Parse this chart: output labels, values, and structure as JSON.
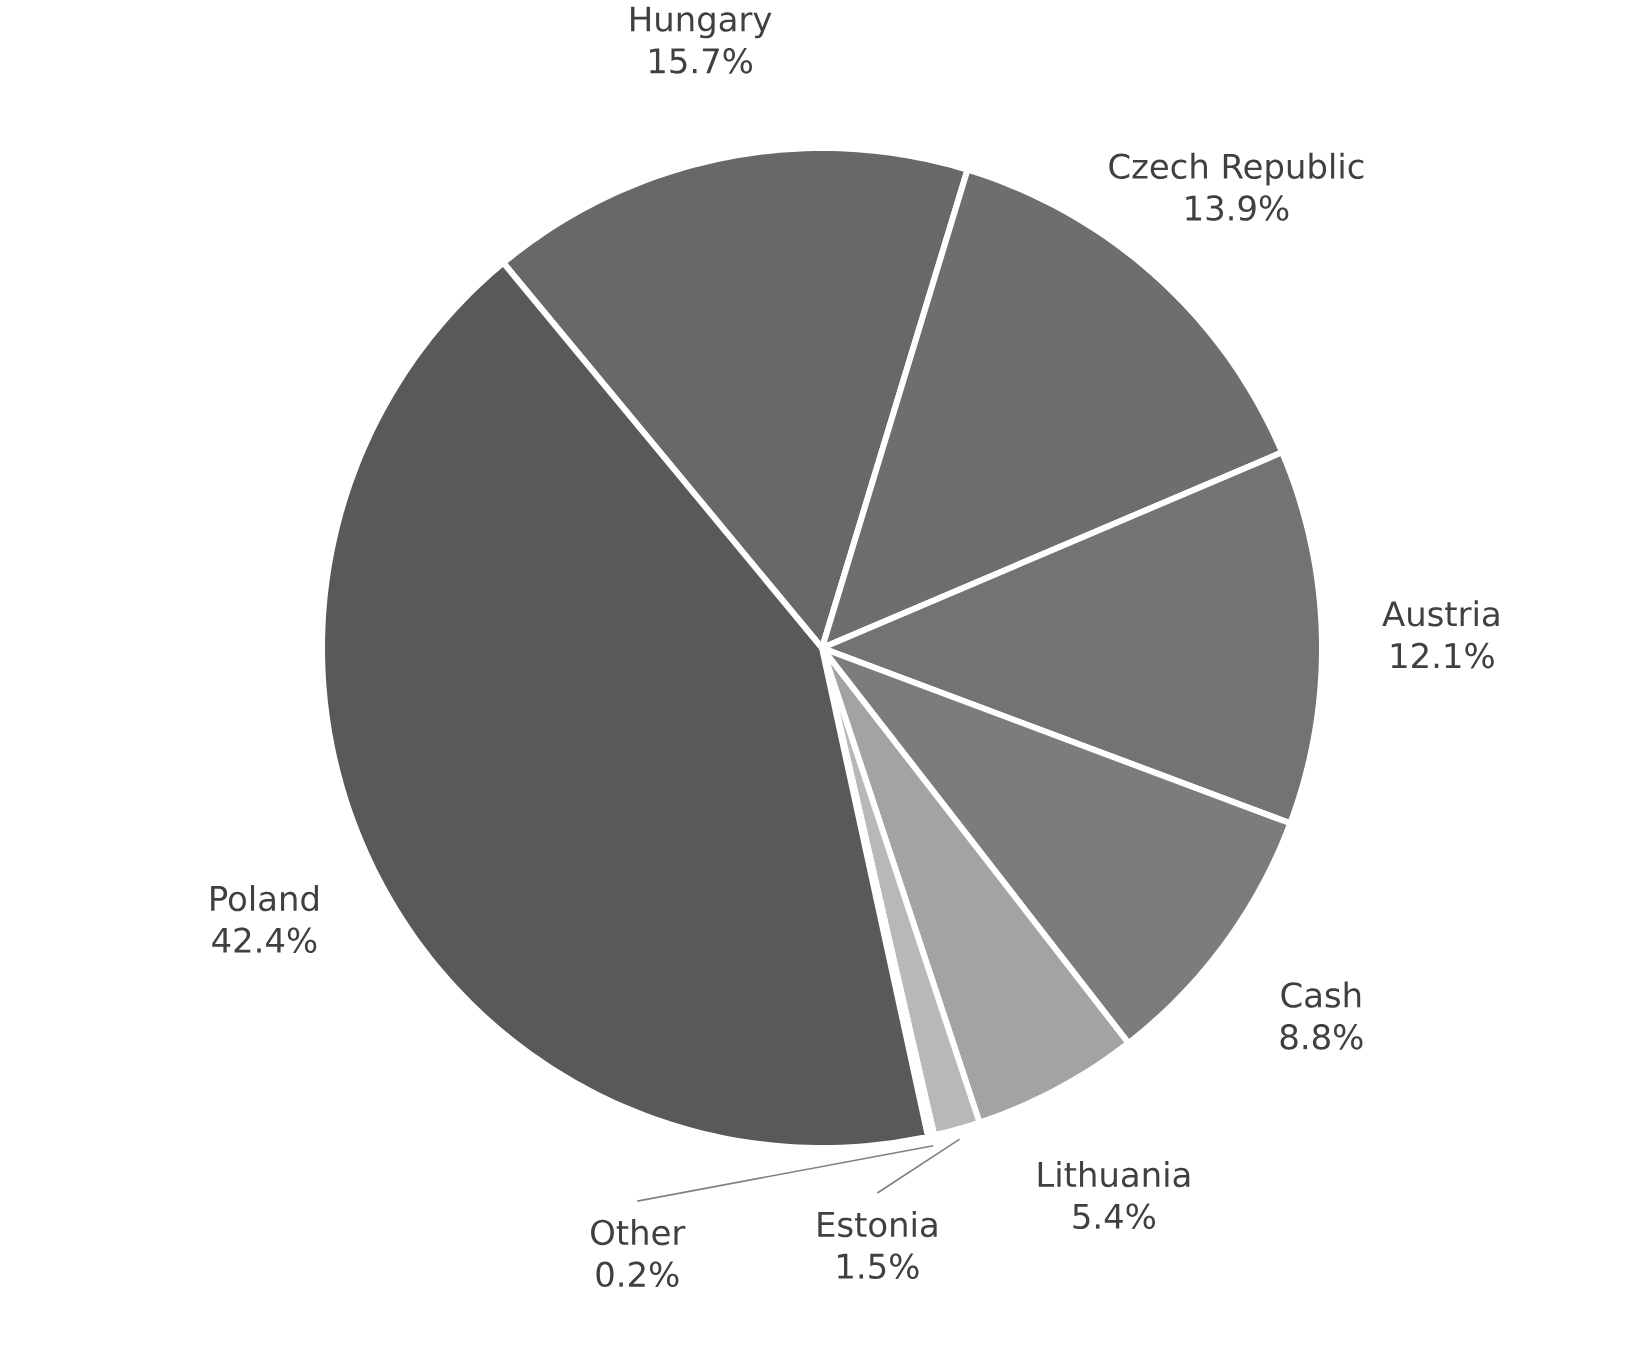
{
  "chart_data": {
    "type": "pie",
    "categories": [
      "Hungary",
      "Czech Republic",
      "Austria",
      "Cash",
      "Lithuania",
      "Estonia",
      "Other",
      "Poland"
    ],
    "values": [
      15.7,
      13.9,
      12.1,
      8.8,
      5.4,
      1.5,
      0.2,
      42.4
    ],
    "value_labels": [
      "15.7%",
      "13.9%",
      "12.1%",
      "8.8%",
      "5.4%",
      "1.5%",
      "0.2%",
      "42.4%"
    ],
    "colors": [
      "#686868",
      "#6e6e6e",
      "#737373",
      "#7c7c7c",
      "#a3a3a3",
      "#b8b8b8",
      "#cccccc",
      "#595959"
    ]
  }
}
